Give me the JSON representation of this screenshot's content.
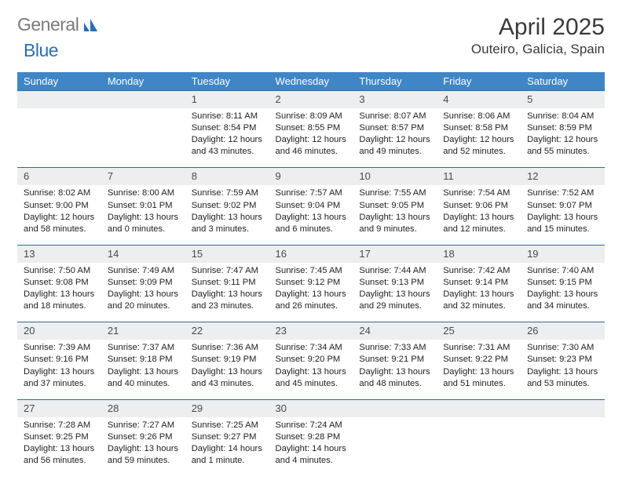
{
  "logo": {
    "part1": "General",
    "part2": "Blue"
  },
  "title": "April 2025",
  "location": "Outeiro, Galicia, Spain",
  "colors": {
    "header_bg": "#3f86c7",
    "header_text": "#ffffff",
    "daynum_bg": "#eceeef",
    "daynum_border": "#2f6aa3",
    "logo_gray": "#7a7a7a",
    "logo_blue": "#2a6fb5"
  },
  "weekdays": [
    "Sunday",
    "Monday",
    "Tuesday",
    "Wednesday",
    "Thursday",
    "Friday",
    "Saturday"
  ],
  "weeks": [
    [
      {
        "n": "",
        "t": ""
      },
      {
        "n": "",
        "t": ""
      },
      {
        "n": "1",
        "t": "Sunrise: 8:11 AM\nSunset: 8:54 PM\nDaylight: 12 hours and 43 minutes."
      },
      {
        "n": "2",
        "t": "Sunrise: 8:09 AM\nSunset: 8:55 PM\nDaylight: 12 hours and 46 minutes."
      },
      {
        "n": "3",
        "t": "Sunrise: 8:07 AM\nSunset: 8:57 PM\nDaylight: 12 hours and 49 minutes."
      },
      {
        "n": "4",
        "t": "Sunrise: 8:06 AM\nSunset: 8:58 PM\nDaylight: 12 hours and 52 minutes."
      },
      {
        "n": "5",
        "t": "Sunrise: 8:04 AM\nSunset: 8:59 PM\nDaylight: 12 hours and 55 minutes."
      }
    ],
    [
      {
        "n": "6",
        "t": "Sunrise: 8:02 AM\nSunset: 9:00 PM\nDaylight: 12 hours and 58 minutes."
      },
      {
        "n": "7",
        "t": "Sunrise: 8:00 AM\nSunset: 9:01 PM\nDaylight: 13 hours and 0 minutes."
      },
      {
        "n": "8",
        "t": "Sunrise: 7:59 AM\nSunset: 9:02 PM\nDaylight: 13 hours and 3 minutes."
      },
      {
        "n": "9",
        "t": "Sunrise: 7:57 AM\nSunset: 9:04 PM\nDaylight: 13 hours and 6 minutes."
      },
      {
        "n": "10",
        "t": "Sunrise: 7:55 AM\nSunset: 9:05 PM\nDaylight: 13 hours and 9 minutes."
      },
      {
        "n": "11",
        "t": "Sunrise: 7:54 AM\nSunset: 9:06 PM\nDaylight: 13 hours and 12 minutes."
      },
      {
        "n": "12",
        "t": "Sunrise: 7:52 AM\nSunset: 9:07 PM\nDaylight: 13 hours and 15 minutes."
      }
    ],
    [
      {
        "n": "13",
        "t": "Sunrise: 7:50 AM\nSunset: 9:08 PM\nDaylight: 13 hours and 18 minutes."
      },
      {
        "n": "14",
        "t": "Sunrise: 7:49 AM\nSunset: 9:09 PM\nDaylight: 13 hours and 20 minutes."
      },
      {
        "n": "15",
        "t": "Sunrise: 7:47 AM\nSunset: 9:11 PM\nDaylight: 13 hours and 23 minutes."
      },
      {
        "n": "16",
        "t": "Sunrise: 7:45 AM\nSunset: 9:12 PM\nDaylight: 13 hours and 26 minutes."
      },
      {
        "n": "17",
        "t": "Sunrise: 7:44 AM\nSunset: 9:13 PM\nDaylight: 13 hours and 29 minutes."
      },
      {
        "n": "18",
        "t": "Sunrise: 7:42 AM\nSunset: 9:14 PM\nDaylight: 13 hours and 32 minutes."
      },
      {
        "n": "19",
        "t": "Sunrise: 7:40 AM\nSunset: 9:15 PM\nDaylight: 13 hours and 34 minutes."
      }
    ],
    [
      {
        "n": "20",
        "t": "Sunrise: 7:39 AM\nSunset: 9:16 PM\nDaylight: 13 hours and 37 minutes."
      },
      {
        "n": "21",
        "t": "Sunrise: 7:37 AM\nSunset: 9:18 PM\nDaylight: 13 hours and 40 minutes."
      },
      {
        "n": "22",
        "t": "Sunrise: 7:36 AM\nSunset: 9:19 PM\nDaylight: 13 hours and 43 minutes."
      },
      {
        "n": "23",
        "t": "Sunrise: 7:34 AM\nSunset: 9:20 PM\nDaylight: 13 hours and 45 minutes."
      },
      {
        "n": "24",
        "t": "Sunrise: 7:33 AM\nSunset: 9:21 PM\nDaylight: 13 hours and 48 minutes."
      },
      {
        "n": "25",
        "t": "Sunrise: 7:31 AM\nSunset: 9:22 PM\nDaylight: 13 hours and 51 minutes."
      },
      {
        "n": "26",
        "t": "Sunrise: 7:30 AM\nSunset: 9:23 PM\nDaylight: 13 hours and 53 minutes."
      }
    ],
    [
      {
        "n": "27",
        "t": "Sunrise: 7:28 AM\nSunset: 9:25 PM\nDaylight: 13 hours and 56 minutes."
      },
      {
        "n": "28",
        "t": "Sunrise: 7:27 AM\nSunset: 9:26 PM\nDaylight: 13 hours and 59 minutes."
      },
      {
        "n": "29",
        "t": "Sunrise: 7:25 AM\nSunset: 9:27 PM\nDaylight: 14 hours and 1 minute."
      },
      {
        "n": "30",
        "t": "Sunrise: 7:24 AM\nSunset: 9:28 PM\nDaylight: 14 hours and 4 minutes."
      },
      {
        "n": "",
        "t": ""
      },
      {
        "n": "",
        "t": ""
      },
      {
        "n": "",
        "t": ""
      }
    ]
  ]
}
